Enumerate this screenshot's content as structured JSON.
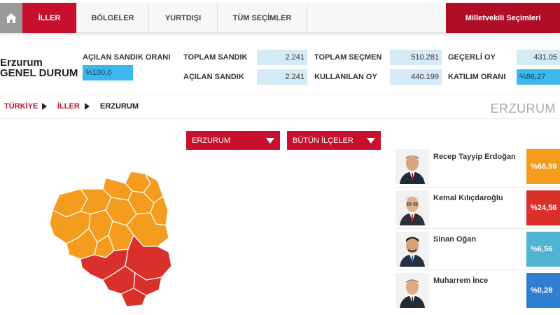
{
  "nav": {
    "tabs": [
      "İLLER",
      "BÖLGELER",
      "YURTDIŞI",
      "TÜM SEÇİMLER"
    ],
    "right_tab": "Milletvekili Seçimleri"
  },
  "summary": {
    "city": "Erzurum",
    "subtitle": "GENEL DURUM",
    "opened_ratio_label": "AÇILAN SANDIK ORANI",
    "opened_ratio_value": "%100,0",
    "total_box_label": "TOPLAM SANDIK",
    "total_box_value": "2.241",
    "opened_box_label": "AÇILAN SANDIK",
    "opened_box_value": "2.241",
    "total_voters_label": "TOPLAM SEÇMEN",
    "total_voters_value": "510.281",
    "used_votes_label": "KULLANILAN OY",
    "used_votes_value": "440.199",
    "valid_votes_label": "GEÇERLİ OY",
    "valid_votes_value": "431.05",
    "turnout_label": "KATILIM ORANI",
    "turnout_value": "%86,27"
  },
  "breadcrumb": {
    "turkey": "TÜRKİYE",
    "provinces": "İLLER",
    "current": "ERZURUM"
  },
  "page_city": "ERZURUM",
  "filters": {
    "province": "ERZURUM",
    "district": "BÜTÜN İLÇELER"
  },
  "candidates": [
    {
      "name": "Recep Tayyip Erdoğan",
      "pct": "%68,59",
      "color": "#f39c1e",
      "icon": "erdogan-photo"
    },
    {
      "name": "Kemal Kılıçdaroğlu",
      "pct": "%24,56",
      "color": "#d9302c",
      "icon": "kilicdaroglu-photo"
    },
    {
      "name": "Sinan Oğan",
      "pct": "%6,56",
      "color": "#4fb3d1",
      "icon": "ogan-photo"
    },
    {
      "name": "Muharrem İnce",
      "pct": "%0,28",
      "color": "#2f7fd0",
      "icon": "ince-photo"
    }
  ],
  "colors": {
    "accent": "#c8102e",
    "map_orange": "#f39c1e",
    "map_red": "#d9302c"
  }
}
